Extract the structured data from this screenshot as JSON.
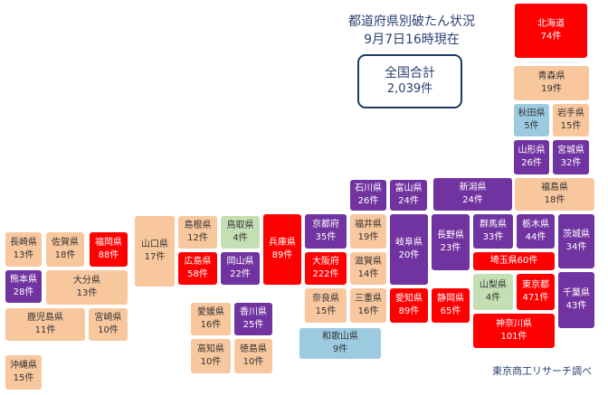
{
  "header": {
    "title_line1": "都道府県別破たん状況",
    "title_line2": "9月7日16時現在"
  },
  "total": {
    "label": "全国合計",
    "value": "2,039件"
  },
  "credit": "東京商工リサーチ調べ",
  "colors": {
    "red": "#ff0000",
    "orange": "#f8c79e",
    "green": "#c5dfb4",
    "blue": "#9ccbe0",
    "purple": "#7133a0"
  },
  "prefectures": {
    "hokkaido": {
      "name": "北海道",
      "count": "74件",
      "color": "red"
    },
    "aomori": {
      "name": "青森県",
      "count": "19件",
      "color": "orange"
    },
    "akita": {
      "name": "秋田県",
      "count": "5件",
      "color": "blue"
    },
    "iwate": {
      "name": "岩手県",
      "count": "15件",
      "color": "orange"
    },
    "yamagata": {
      "name": "山形県",
      "count": "26件",
      "color": "purple"
    },
    "miyagi": {
      "name": "宮城県",
      "count": "32件",
      "color": "purple"
    },
    "fukushima": {
      "name": "福島県",
      "count": "18件",
      "color": "orange"
    },
    "niigata": {
      "name": "新潟県",
      "count": "24件",
      "color": "purple"
    },
    "ishikawa": {
      "name": "石川県",
      "count": "26件",
      "color": "purple"
    },
    "toyama": {
      "name": "富山県",
      "count": "24件",
      "color": "purple"
    },
    "gunma": {
      "name": "群馬県",
      "count": "33件",
      "color": "purple"
    },
    "tochigi": {
      "name": "栃木県",
      "count": "44件",
      "color": "purple"
    },
    "ibaraki": {
      "name": "茨城県",
      "count": "34件",
      "color": "purple"
    },
    "saitama": {
      "name": "埼玉県",
      "count": "60件",
      "color": "red"
    },
    "chiba": {
      "name": "千葉県",
      "count": "43件",
      "color": "purple"
    },
    "tokyo": {
      "name": "東京都",
      "count": "471件",
      "color": "red"
    },
    "kanagawa": {
      "name": "神奈川県",
      "count": "101件",
      "color": "red"
    },
    "yamanashi": {
      "name": "山梨県",
      "count": "4件",
      "color": "green"
    },
    "nagano": {
      "name": "長野県",
      "count": "23件",
      "color": "purple"
    },
    "gifu": {
      "name": "岐阜県",
      "count": "20件",
      "color": "purple"
    },
    "shizuoka": {
      "name": "静岡県",
      "count": "65件",
      "color": "red"
    },
    "aichi": {
      "name": "愛知県",
      "count": "89件",
      "color": "red"
    },
    "fukui": {
      "name": "福井県",
      "count": "19件",
      "color": "orange"
    },
    "shiga": {
      "name": "滋賀県",
      "count": "14件",
      "color": "orange"
    },
    "mie": {
      "name": "三重県",
      "count": "16件",
      "color": "orange"
    },
    "kyoto": {
      "name": "京都府",
      "count": "35件",
      "color": "purple"
    },
    "osaka": {
      "name": "大阪府",
      "count": "222件",
      "color": "red"
    },
    "nara": {
      "name": "奈良県",
      "count": "15件",
      "color": "orange"
    },
    "wakayama": {
      "name": "和歌山県",
      "count": "9件",
      "color": "blue"
    },
    "hyogo": {
      "name": "兵庫県",
      "count": "89件",
      "color": "red"
    },
    "tottori": {
      "name": "鳥取県",
      "count": "4件",
      "color": "green"
    },
    "shimane": {
      "name": "島根県",
      "count": "12件",
      "color": "orange"
    },
    "okayama": {
      "name": "岡山県",
      "count": "22件",
      "color": "purple"
    },
    "hiroshima": {
      "name": "広島県",
      "count": "58件",
      "color": "red"
    },
    "yamaguchi": {
      "name": "山口県",
      "count": "17件",
      "color": "orange"
    },
    "kagawa": {
      "name": "香川県",
      "count": "25件",
      "color": "purple"
    },
    "ehime": {
      "name": "愛媛県",
      "count": "16件",
      "color": "orange"
    },
    "kochi": {
      "name": "高知県",
      "count": "10件",
      "color": "orange"
    },
    "tokushima": {
      "name": "徳島県",
      "count": "10件",
      "color": "orange"
    },
    "fukuoka": {
      "name": "福岡県",
      "count": "88件",
      "color": "red"
    },
    "saga": {
      "name": "佐賀県",
      "count": "18件",
      "color": "orange"
    },
    "nagasaki": {
      "name": "長崎県",
      "count": "13件",
      "color": "orange"
    },
    "kumamoto": {
      "name": "熊本県",
      "count": "28件",
      "color": "purple"
    },
    "oita": {
      "name": "大分県",
      "count": "13件",
      "color": "orange"
    },
    "miyazaki": {
      "name": "宮崎県",
      "count": "10件",
      "color": "orange"
    },
    "kagoshima": {
      "name": "鹿児島県",
      "count": "11件",
      "color": "orange"
    },
    "okinawa": {
      "name": "沖縄県",
      "count": "15件",
      "color": "orange"
    }
  }
}
